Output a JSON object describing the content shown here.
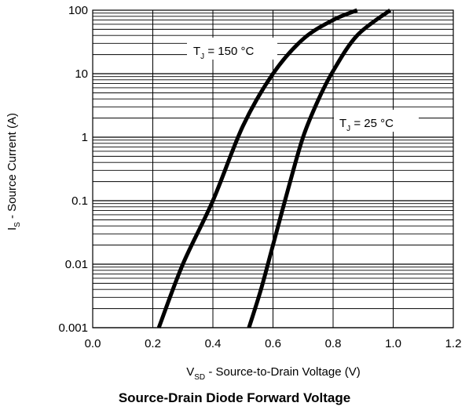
{
  "chart_data": {
    "type": "line",
    "title": "Source-Drain Diode Forward Voltage",
    "xlabel": {
      "main": "V",
      "sub": "SD",
      "rest": " - Source-to-Drain Voltage (V)"
    },
    "ylabel": {
      "main": "I",
      "sub": "S",
      "rest": " - Source Current (A)"
    },
    "xlim": [
      0.0,
      1.2
    ],
    "ylim": [
      0.001,
      100
    ],
    "yscale": "log",
    "grid": true,
    "x_ticks": [
      "0.0",
      "0.2",
      "0.4",
      "0.6",
      "0.8",
      "1.0",
      "1.2"
    ],
    "y_ticks": [
      "0.001",
      "0.01",
      "0.1",
      "1",
      "10",
      "100"
    ],
    "series": [
      {
        "name": {
          "main": "T",
          "sub": "J",
          "rest": " = 150 °C"
        },
        "x": [
          0.22,
          0.3,
          0.4,
          0.5,
          0.6,
          0.7,
          0.8,
          0.88
        ],
        "y": [
          0.001,
          0.01,
          0.1,
          1.5,
          10,
          35,
          70,
          100
        ]
      },
      {
        "name": {
          "main": "T",
          "sub": "J",
          "rest": " = 25 °C"
        },
        "x": [
          0.52,
          0.56,
          0.6,
          0.65,
          0.7,
          0.75,
          0.8,
          0.88,
          0.99
        ],
        "y": [
          0.001,
          0.004,
          0.02,
          0.15,
          1.0,
          3.8,
          11,
          40,
          100
        ]
      }
    ],
    "colors": {
      "line": "#000000",
      "grid": "#000000",
      "background": "#ffffff"
    }
  }
}
